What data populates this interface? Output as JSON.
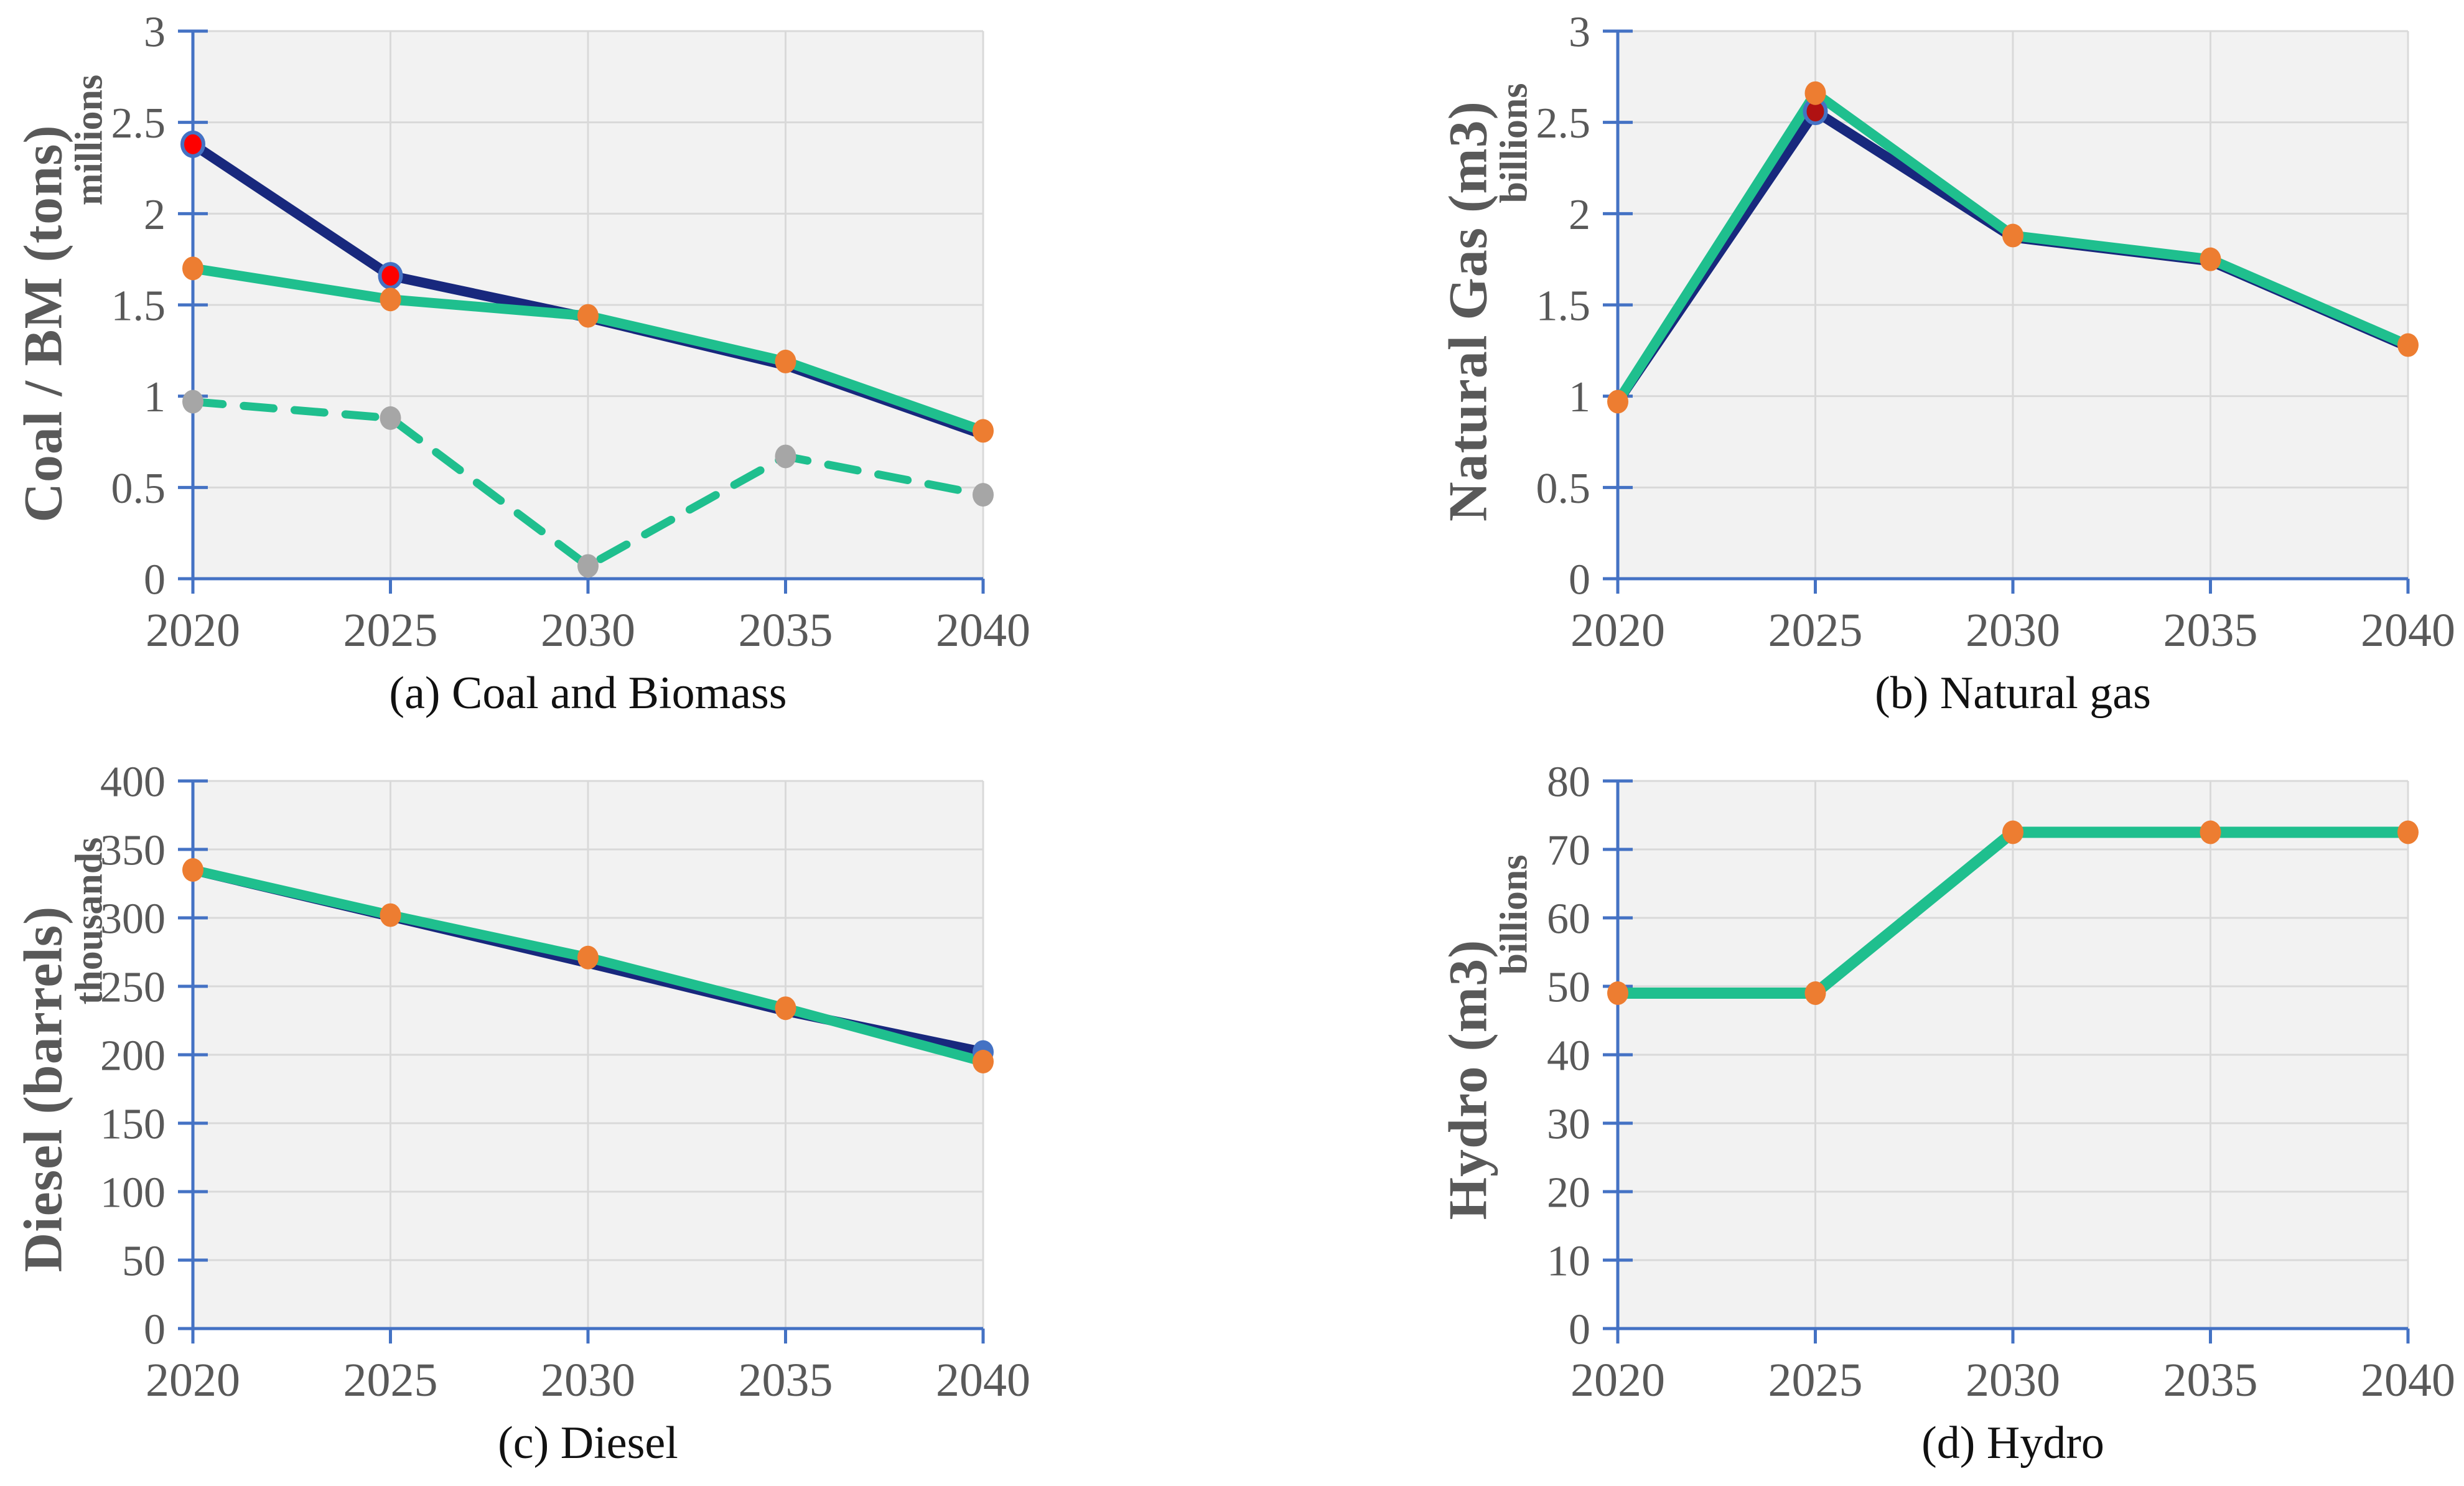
{
  "figure": {
    "background": "#FFFFFF",
    "colors": {
      "axis": "#4472C4",
      "grid": "#D9D9D9",
      "plot_bg": "#F2F2F2",
      "tick_text": "#595959",
      "axis_title_text": "#595959",
      "caption_text": "#111111",
      "navy_line": "#18287D",
      "green_line": "#1FBF8E",
      "orange_marker": "#ED7D31",
      "red_marker": "#FE0000",
      "dark_red_marker": "#B01212",
      "gray_marker": "#A6A6A6",
      "marker_ring": "#4472C4"
    },
    "legend": "none",
    "grid_on": true
  },
  "chart_data": [
    {
      "type": "line",
      "title": "(a) Coal and Biomass",
      "ylabel": "Coal / BM (tons)",
      "unit_label": "millions",
      "xlabel": "",
      "x_labels": [
        "2020",
        "2025",
        "2030",
        "2035",
        "2040"
      ],
      "ylim": [
        0,
        3
      ],
      "yticks": [
        0,
        0.5,
        1,
        1.5,
        2,
        2.5,
        3
      ],
      "ytick_labels": [
        "0",
        "0.5",
        "1",
        "1.5",
        "2",
        "2.5",
        "3"
      ],
      "series": [
        {
          "name": "navy-solid",
          "color": "#18287D",
          "width": 16,
          "values": [
            2.38,
            1.66,
            1.43,
            1.17,
            0.79
          ],
          "marker_fill": "#FE0000",
          "marker_stroke": "#4472C4",
          "marker_points": [
            0,
            1
          ]
        },
        {
          "name": "green-solid",
          "color": "#1FBF8E",
          "width": 16,
          "values": [
            1.7,
            1.53,
            1.44,
            1.19,
            0.81
          ],
          "marker_fill": "#ED7D31"
        },
        {
          "name": "green-dashed",
          "color": "#1FBF8E",
          "width": 13,
          "dash": "48 34",
          "values": [
            0.97,
            0.88,
            0.07,
            0.67,
            0.46
          ],
          "marker_fill": "#A6A6A6"
        }
      ]
    },
    {
      "type": "line",
      "title": "(b) Natural gas",
      "ylabel": "Natural Gas (m3)",
      "unit_label": "billions",
      "xlabel": "",
      "x_labels": [
        "2020",
        "2025",
        "2030",
        "2035",
        "2040"
      ],
      "ylim": [
        0,
        3
      ],
      "yticks": [
        0,
        0.5,
        1,
        1.5,
        2,
        2.5,
        3
      ],
      "ytick_labels": [
        "0",
        "0.5",
        "1",
        "1.5",
        "2",
        "2.5",
        "3"
      ],
      "series": [
        {
          "name": "navy-solid",
          "color": "#18287D",
          "width": 16,
          "values": [
            0.97,
            2.56,
            1.87,
            1.74,
            1.27
          ],
          "marker_fill": "#B01212",
          "marker_stroke": "#4472C4",
          "marker_points": [
            1
          ]
        },
        {
          "name": "green-solid",
          "color": "#1FBF8E",
          "width": 16,
          "values": [
            0.97,
            2.66,
            1.88,
            1.75,
            1.28
          ],
          "marker_fill": "#ED7D31"
        }
      ]
    },
    {
      "type": "line",
      "title": "(c) Diesel",
      "ylabel": "Diesel (barrels)",
      "unit_label": "thousands",
      "xlabel": "",
      "x_labels": [
        "2020",
        "2025",
        "2030",
        "2035",
        "2040"
      ],
      "ylim": [
        0,
        400
      ],
      "yticks": [
        0,
        50,
        100,
        150,
        200,
        250,
        300,
        350,
        400
      ],
      "ytick_labels": [
        "0",
        "50",
        "100",
        "150",
        "200",
        "250",
        "300",
        "350",
        "400"
      ],
      "series": [
        {
          "name": "navy-solid",
          "color": "#18287D",
          "width": 16,
          "values": [
            335,
            301,
            267,
            232,
            202
          ],
          "marker_fill": "#4472C4",
          "marker_points": [
            4
          ]
        },
        {
          "name": "green-solid",
          "color": "#1FBF8E",
          "width": 16,
          "values": [
            335,
            302,
            271,
            234,
            195
          ],
          "marker_fill": "#ED7D31"
        }
      ]
    },
    {
      "type": "line",
      "title": "(d) Hydro",
      "ylabel": "Hydro (m3)",
      "unit_label": "billions",
      "xlabel": "",
      "x_labels": [
        "2020",
        "2025",
        "2030",
        "2035",
        "2040"
      ],
      "ylim": [
        0,
        80
      ],
      "yticks": [
        0,
        10,
        20,
        30,
        40,
        50,
        60,
        70,
        80
      ],
      "ytick_labels": [
        "0",
        "10",
        "20",
        "30",
        "40",
        "50",
        "60",
        "70",
        "80"
      ],
      "series": [
        {
          "name": "green-solid",
          "color": "#1FBF8E",
          "width": 18,
          "values": [
            49,
            49,
            72.5,
            72.5,
            72.5
          ],
          "marker_fill": "#ED7D31"
        }
      ]
    }
  ]
}
